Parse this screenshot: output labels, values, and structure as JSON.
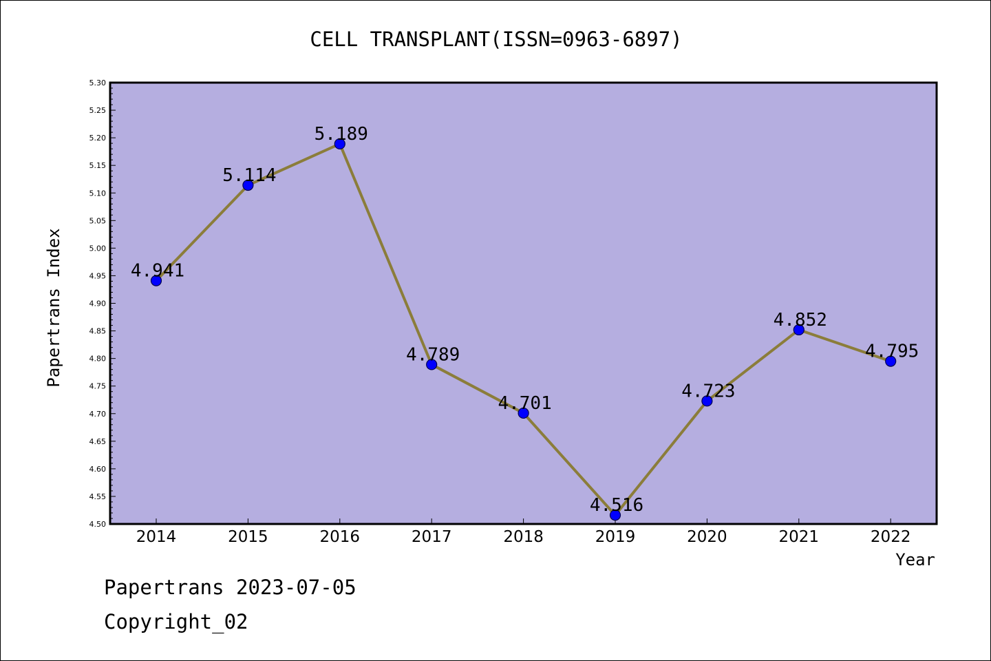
{
  "chart_data": {
    "type": "line",
    "title": "CELL TRANSPLANT(ISSN=0963-6897)",
    "xlabel": "Year",
    "ylabel": "Papertrans Index",
    "categories": [
      "2014",
      "2015",
      "2016",
      "2017",
      "2018",
      "2019",
      "2020",
      "2021",
      "2022"
    ],
    "series": [
      {
        "values": [
          4.941,
          5.114,
          5.189,
          4.789,
          4.701,
          4.516,
          4.723,
          4.852,
          4.795
        ],
        "value_labels": [
          "4.941",
          "5.114",
          "5.189",
          "4.789",
          "4.701",
          "4.516",
          "4.723",
          "4.852",
          "4.795"
        ]
      }
    ],
    "ylim": [
      4.5,
      5.3
    ],
    "yticks": [
      "4.50",
      "4.55",
      "4.60",
      "4.65",
      "4.70",
      "4.75",
      "4.80",
      "4.85",
      "4.90",
      "4.95",
      "5.00",
      "5.05",
      "5.10",
      "5.15",
      "5.20",
      "5.25",
      "5.30"
    ],
    "grid": false,
    "legend": "none",
    "colors": {
      "plot_background": "#b5aee0",
      "line": "#8b7d3a",
      "marker": "#0000ff",
      "marker_edge": "#00004d",
      "axis": "#000000"
    }
  },
  "footer": {
    "date_line": "Papertrans 2023-07-05",
    "copyright_line": "Copyright_02"
  }
}
